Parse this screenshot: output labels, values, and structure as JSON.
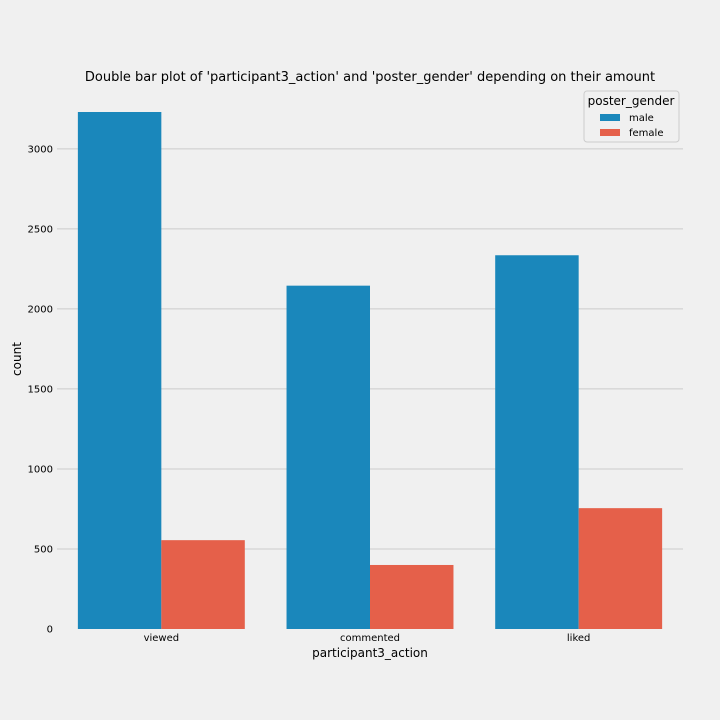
{
  "chart_data": {
    "type": "bar",
    "title": "Double bar plot of 'participant3_action' and 'poster_gender' depending on their amount",
    "xlabel": "participant3_action",
    "ylabel": "count",
    "categories": [
      "viewed",
      "commented",
      "liked"
    ],
    "series": [
      {
        "name": "male",
        "color": "#1a87bb",
        "values": [
          3230,
          2145,
          2335
        ]
      },
      {
        "name": "female",
        "color": "#e5604a",
        "values": [
          555,
          400,
          755
        ]
      }
    ],
    "ylim": [
      0,
      3230
    ],
    "yticks": [
      0,
      500,
      1000,
      1500,
      2000,
      2500,
      3000
    ],
    "grid": true,
    "legend": {
      "title": "poster_gender",
      "position": "top-right"
    }
  }
}
